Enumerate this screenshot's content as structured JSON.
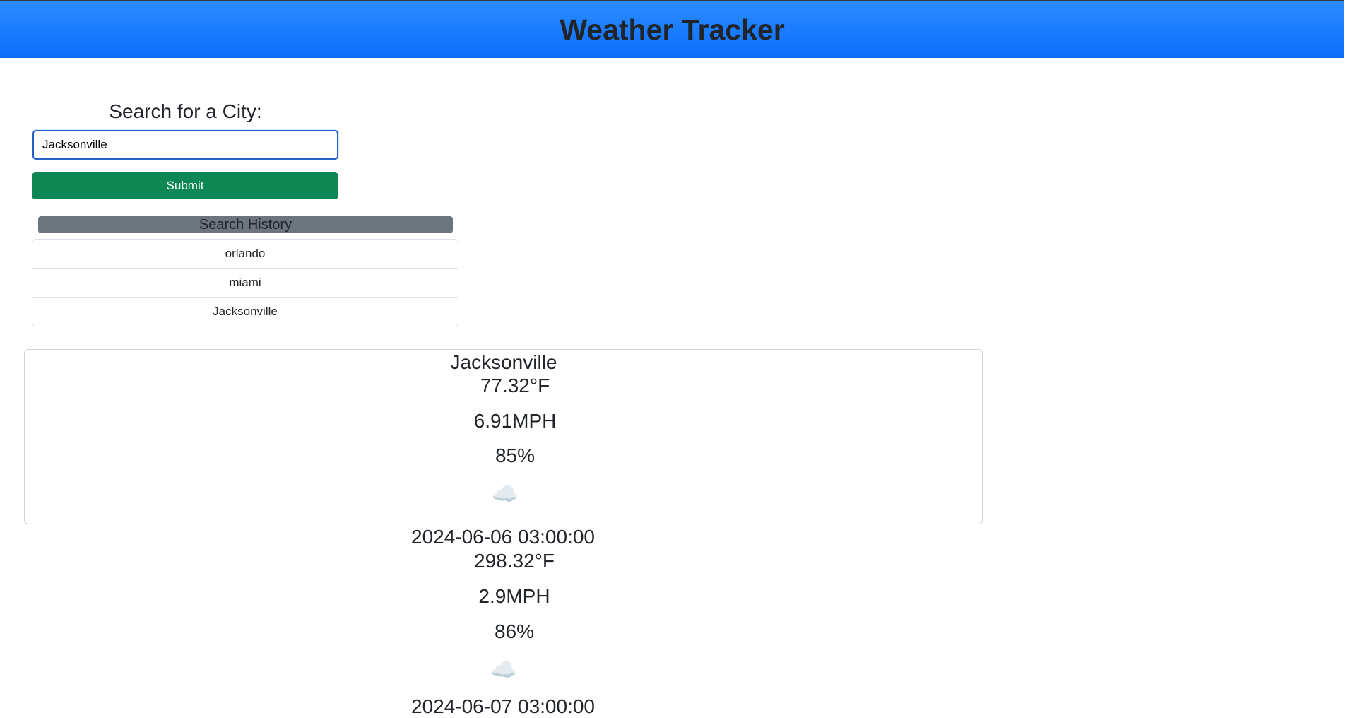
{
  "app": {
    "title": "Weather Tracker"
  },
  "search": {
    "title": "Search for a City:",
    "value": "Jacksonville",
    "submit_label": "Submit"
  },
  "history": {
    "header": "Search History",
    "items": [
      "orlando",
      "miami",
      "Jacksonville"
    ]
  },
  "current": {
    "city": "Jacksonville",
    "temp": "77.32°F",
    "wind": "6.91MPH",
    "humidity": "85%",
    "icon": "partly-cloudy-night-icon"
  },
  "forecast": [
    {
      "date": "2024-06-06 03:00:00",
      "temp": "298.32°F",
      "wind": "2.9MPH",
      "humidity": "86%",
      "icon": "partly-cloudy-night-icon"
    },
    {
      "date": "2024-06-07 03:00:00"
    }
  ]
}
